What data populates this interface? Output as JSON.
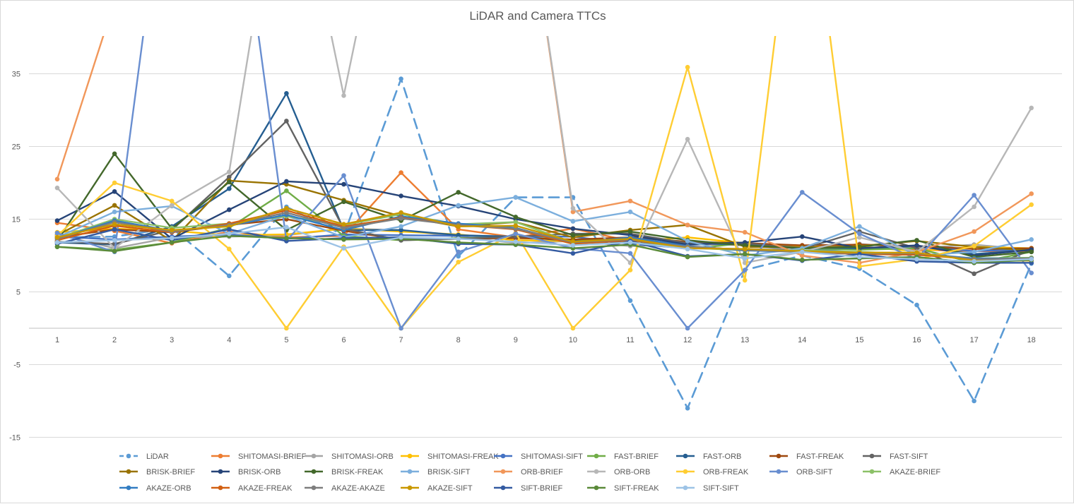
{
  "chart_data": {
    "type": "line",
    "title": "LiDAR and Camera TTCs",
    "xlabel": "",
    "ylabel": "",
    "ylim": [
      -15,
      40
    ],
    "yticks": [
      -15,
      -5,
      5,
      15,
      25,
      35
    ],
    "grid": true,
    "legend_position": "bottom",
    "categories": [
      "1",
      "2",
      "3",
      "4",
      "5",
      "6",
      "7",
      "8",
      "9",
      "10",
      "11",
      "12",
      "13",
      "14",
      "15",
      "16",
      "17",
      "18"
    ],
    "series": [
      {
        "name": "LiDAR",
        "color": "#5b9bd5",
        "dashed": true,
        "values": [
          12.5,
          12.6,
          13.8,
          7.2,
          16.7,
          12.8,
          34.3,
          9.9,
          18.0,
          18.0,
          3.8,
          -11.0,
          8.0,
          10.0,
          8.2,
          3.2,
          -10.0,
          8.9
        ]
      },
      {
        "name": "SHITOMASI-BRIEF",
        "color": "#ed7d31",
        "values": [
          14.5,
          13.4,
          11.7,
          13.3,
          12.5,
          12.7,
          21.4,
          13.6,
          12.5,
          13.7,
          12.0,
          11.7,
          11.4,
          11.0,
          11.2,
          10.8,
          10.6,
          10.6
        ]
      },
      {
        "name": "SHITOMASI-ORB",
        "color": "#a5a5a5",
        "values": [
          12.9,
          11.0,
          12.5,
          12.6,
          12.8,
          13.7,
          13.5,
          12.6,
          11.7,
          12.0,
          11.3,
          11.5,
          11.5,
          10.6,
          11.6,
          11.0,
          11.5,
          10.8
        ]
      },
      {
        "name": "SHITOMASI-FREAK",
        "color": "#ffc000",
        "values": [
          13.2,
          13.7,
          13.4,
          12.8,
          12.9,
          13.7,
          13.3,
          12.9,
          12.1,
          12.0,
          11.9,
          12.5,
          11.7,
          11.2,
          11.2,
          10.6,
          11.2,
          11.0
        ]
      },
      {
        "name": "SHITOMASI-SIFT",
        "color": "#4472c4",
        "values": [
          12.6,
          12.2,
          12.6,
          12.9,
          12.3,
          12.9,
          12.8,
          12.7,
          12.6,
          12.6,
          11.6,
          11.0,
          10.9,
          10.7,
          10.9,
          11.3,
          10.6,
          10.9
        ]
      },
      {
        "name": "FAST-BRIEF",
        "color": "#70ad47",
        "values": [
          11.2,
          10.8,
          11.8,
          13.8,
          18.9,
          12.7,
          12.1,
          12.4,
          12.5,
          12.2,
          12.0,
          10.9,
          11.7,
          11.0,
          10.8,
          11.0,
          9.0,
          10.5
        ]
      },
      {
        "name": "FAST-ORB",
        "color": "#255e91",
        "values": [
          11.8,
          11.5,
          14.0,
          19.2,
          32.3,
          13.5,
          13.5,
          12.8,
          12.6,
          12.0,
          11.7,
          11.7,
          11.5,
          11.1,
          11.0,
          11.3,
          10.2,
          10.8
        ]
      },
      {
        "name": "FAST-FREAK",
        "color": "#9e480e",
        "values": [
          12.5,
          13.6,
          13.2,
          14.2,
          15.0,
          13.4,
          12.2,
          12.3,
          12.4,
          12.2,
          12.5,
          11.9,
          11.7,
          11.4,
          11.5,
          11.3,
          10.9,
          11.0
        ]
      },
      {
        "name": "FAST-SIFT",
        "color": "#636363",
        "values": [
          11.9,
          11.6,
          13.5,
          20.8,
          28.5,
          13.7,
          12.1,
          12.3,
          12.6,
          13.0,
          13.0,
          11.7,
          11.7,
          10.9,
          13.3,
          11.0,
          7.5,
          10.8
        ]
      },
      {
        "name": "BRISK-BRIEF",
        "color": "#997300",
        "values": [
          12.8,
          16.9,
          12.0,
          20.3,
          19.8,
          17.6,
          15.4,
          14.0,
          14.6,
          12.5,
          13.5,
          14.2,
          11.2,
          11.1,
          11.3,
          12.0,
          11.2,
          10.7
        ]
      },
      {
        "name": "BRISK-ORB",
        "color": "#264478",
        "values": [
          14.8,
          18.8,
          12.3,
          16.3,
          20.2,
          19.8,
          18.2,
          16.8,
          15.0,
          13.7,
          12.8,
          11.5,
          11.8,
          12.6,
          11.0,
          11.4,
          10.0,
          10.8
        ]
      },
      {
        "name": "BRISK-FREAK",
        "color": "#43682b",
        "values": [
          12.0,
          24.0,
          13.7,
          20.1,
          13.5,
          17.4,
          14.8,
          18.7,
          15.3,
          12.8,
          13.3,
          12.1,
          11.4,
          11.0,
          11.2,
          12.1,
          9.8,
          10.5
        ]
      },
      {
        "name": "BRISK-SIFT",
        "color": "#7cafdd",
        "values": [
          12.5,
          16.0,
          16.8,
          13.0,
          15.5,
          12.5,
          14.0,
          16.9,
          18.0,
          14.7,
          16.0,
          12.0,
          10.0,
          11.0,
          14.0,
          10.0,
          10.5,
          12.2
        ]
      },
      {
        "name": "ORB-BRIEF",
        "color": "#f1975a",
        "values": [
          20.5,
          45.0,
          null,
          null,
          null,
          null,
          null,
          null,
          null,
          16.0,
          17.5,
          14.2,
          13.2,
          10.0,
          9.0,
          10.5,
          13.3,
          18.5
        ]
      },
      {
        "name": "ORB-ORB",
        "color": "#b7b7b7",
        "values": [
          19.3,
          11.0,
          16.9,
          21.5,
          null,
          32.0,
          null,
          null,
          null,
          16.5,
          9.0,
          26.0,
          9.0,
          10.5,
          12.5,
          10.5,
          16.7,
          30.3
        ]
      },
      {
        "name": "ORB-FREAK",
        "color": "#ffcd33",
        "values": [
          12.7,
          20.0,
          17.5,
          10.9,
          0.0,
          11.2,
          0.0,
          9.1,
          13.1,
          0.0,
          8.0,
          35.9,
          6.6,
          null,
          8.5,
          9.5,
          11.3,
          17.0
        ]
      },
      {
        "name": "ORB-SIFT",
        "color": "#698ed0",
        "values": [
          13.1,
          10.5,
          null,
          null,
          12.0,
          21.0,
          0.0,
          10.5,
          13.0,
          11.0,
          10.3,
          0.0,
          8.0,
          18.7,
          13.0,
          9.5,
          18.3,
          7.6
        ]
      },
      {
        "name": "AKAZE-BRIEF",
        "color": "#8cc168",
        "values": [
          12.4,
          15.0,
          13.8,
          14.4,
          15.4,
          14.2,
          15.7,
          14.3,
          14.6,
          11.8,
          12.1,
          11.1,
          10.7,
          10.7,
          10.5,
          10.2,
          9.6,
          9.7
        ]
      },
      {
        "name": "AKAZE-ORB",
        "color": "#327dc2",
        "values": [
          12.3,
          14.8,
          13.4,
          14.1,
          15.6,
          13.5,
          15.4,
          14.4,
          13.8,
          11.7,
          12.5,
          11.3,
          10.7,
          10.5,
          10.4,
          10.3,
          9.6,
          9.6
        ]
      },
      {
        "name": "AKAZE-FREAK",
        "color": "#d26012",
        "values": [
          12.1,
          14.1,
          13.2,
          14.4,
          16.2,
          14.0,
          15.2,
          14.2,
          13.6,
          11.6,
          12.1,
          11.2,
          10.8,
          10.5,
          10.2,
          10.1,
          9.5,
          9.4
        ]
      },
      {
        "name": "AKAZE-AKAZE",
        "color": "#7e7e7e",
        "values": [
          12.3,
          14.6,
          13.3,
          14.2,
          15.9,
          13.8,
          15.1,
          14.2,
          13.7,
          11.8,
          12.2,
          11.2,
          10.8,
          10.5,
          10.3,
          10.3,
          9.5,
          9.6
        ]
      },
      {
        "name": "AKAZE-SIFT",
        "color": "#c99800",
        "values": [
          12.5,
          14.3,
          13.5,
          14.0,
          16.5,
          14.3,
          15.9,
          14.0,
          14.1,
          11.9,
          12.3,
          11.0,
          10.9,
          10.6,
          10.4,
          10.4,
          9.3,
          9.3
        ]
      },
      {
        "name": "SIFT-BRIEF",
        "color": "#335aa1",
        "values": [
          11.6,
          13.6,
          12.1,
          13.6,
          12.0,
          12.4,
          12.5,
          11.6,
          11.5,
          10.3,
          12.0,
          9.9,
          10.2,
          9.3,
          10.2,
          9.2,
          9.0,
          9.0
        ]
      },
      {
        "name": "SIFT-FREAK",
        "color": "#5a8a39",
        "values": [
          11.2,
          10.6,
          11.8,
          12.7,
          12.4,
          12.2,
          12.3,
          11.8,
          11.5,
          11.0,
          11.5,
          9.8,
          10.2,
          9.4,
          9.6,
          9.8,
          9.0,
          9.4
        ]
      },
      {
        "name": "SIFT-SIFT",
        "color": "#9dc3e6",
        "values": [
          11.8,
          12.1,
          12.4,
          13.0,
          13.9,
          11.0,
          12.5,
          12.3,
          11.9,
          11.4,
          11.8,
          10.9,
          9.6,
          10.5,
          9.8,
          9.5,
          9.2,
          9.5
        ]
      }
    ]
  }
}
